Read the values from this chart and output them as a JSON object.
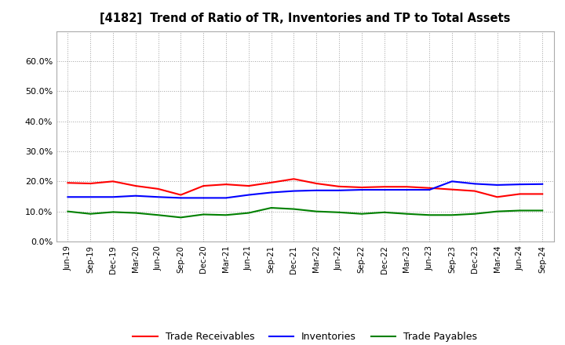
{
  "title": "[4182]  Trend of Ratio of TR, Inventories and TP to Total Assets",
  "x_labels": [
    "Jun-19",
    "Sep-19",
    "Dec-19",
    "Mar-20",
    "Jun-20",
    "Sep-20",
    "Dec-20",
    "Mar-21",
    "Jun-21",
    "Sep-21",
    "Dec-21",
    "Mar-22",
    "Jun-22",
    "Sep-22",
    "Dec-22",
    "Mar-23",
    "Jun-23",
    "Sep-23",
    "Dec-23",
    "Mar-24",
    "Jun-24",
    "Sep-24"
  ],
  "trade_receivables": [
    0.195,
    0.193,
    0.2,
    0.185,
    0.175,
    0.155,
    0.185,
    0.19,
    0.185,
    0.196,
    0.208,
    0.193,
    0.183,
    0.18,
    0.182,
    0.182,
    0.178,
    0.173,
    0.168,
    0.148,
    0.158,
    0.158
  ],
  "inventories": [
    0.148,
    0.148,
    0.148,
    0.152,
    0.148,
    0.145,
    0.145,
    0.145,
    0.155,
    0.163,
    0.168,
    0.17,
    0.17,
    0.172,
    0.172,
    0.172,
    0.172,
    0.2,
    0.192,
    0.188,
    0.19,
    0.191
  ],
  "trade_payables": [
    0.1,
    0.092,
    0.098,
    0.095,
    0.088,
    0.08,
    0.09,
    0.088,
    0.095,
    0.112,
    0.108,
    0.1,
    0.097,
    0.092,
    0.097,
    0.092,
    0.088,
    0.088,
    0.092,
    0.1,
    0.103,
    0.103
  ],
  "ylim": [
    0.0,
    0.7
  ],
  "yticks": [
    0.0,
    0.1,
    0.2,
    0.3,
    0.4,
    0.5,
    0.6
  ],
  "colors": {
    "trade_receivables": "#ff0000",
    "inventories": "#0000ff",
    "trade_payables": "#008000"
  },
  "background_color": "#ffffff",
  "plot_background": "#ffffff",
  "grid_color": "#999999",
  "legend_labels": [
    "Trade Receivables",
    "Inventories",
    "Trade Payables"
  ]
}
